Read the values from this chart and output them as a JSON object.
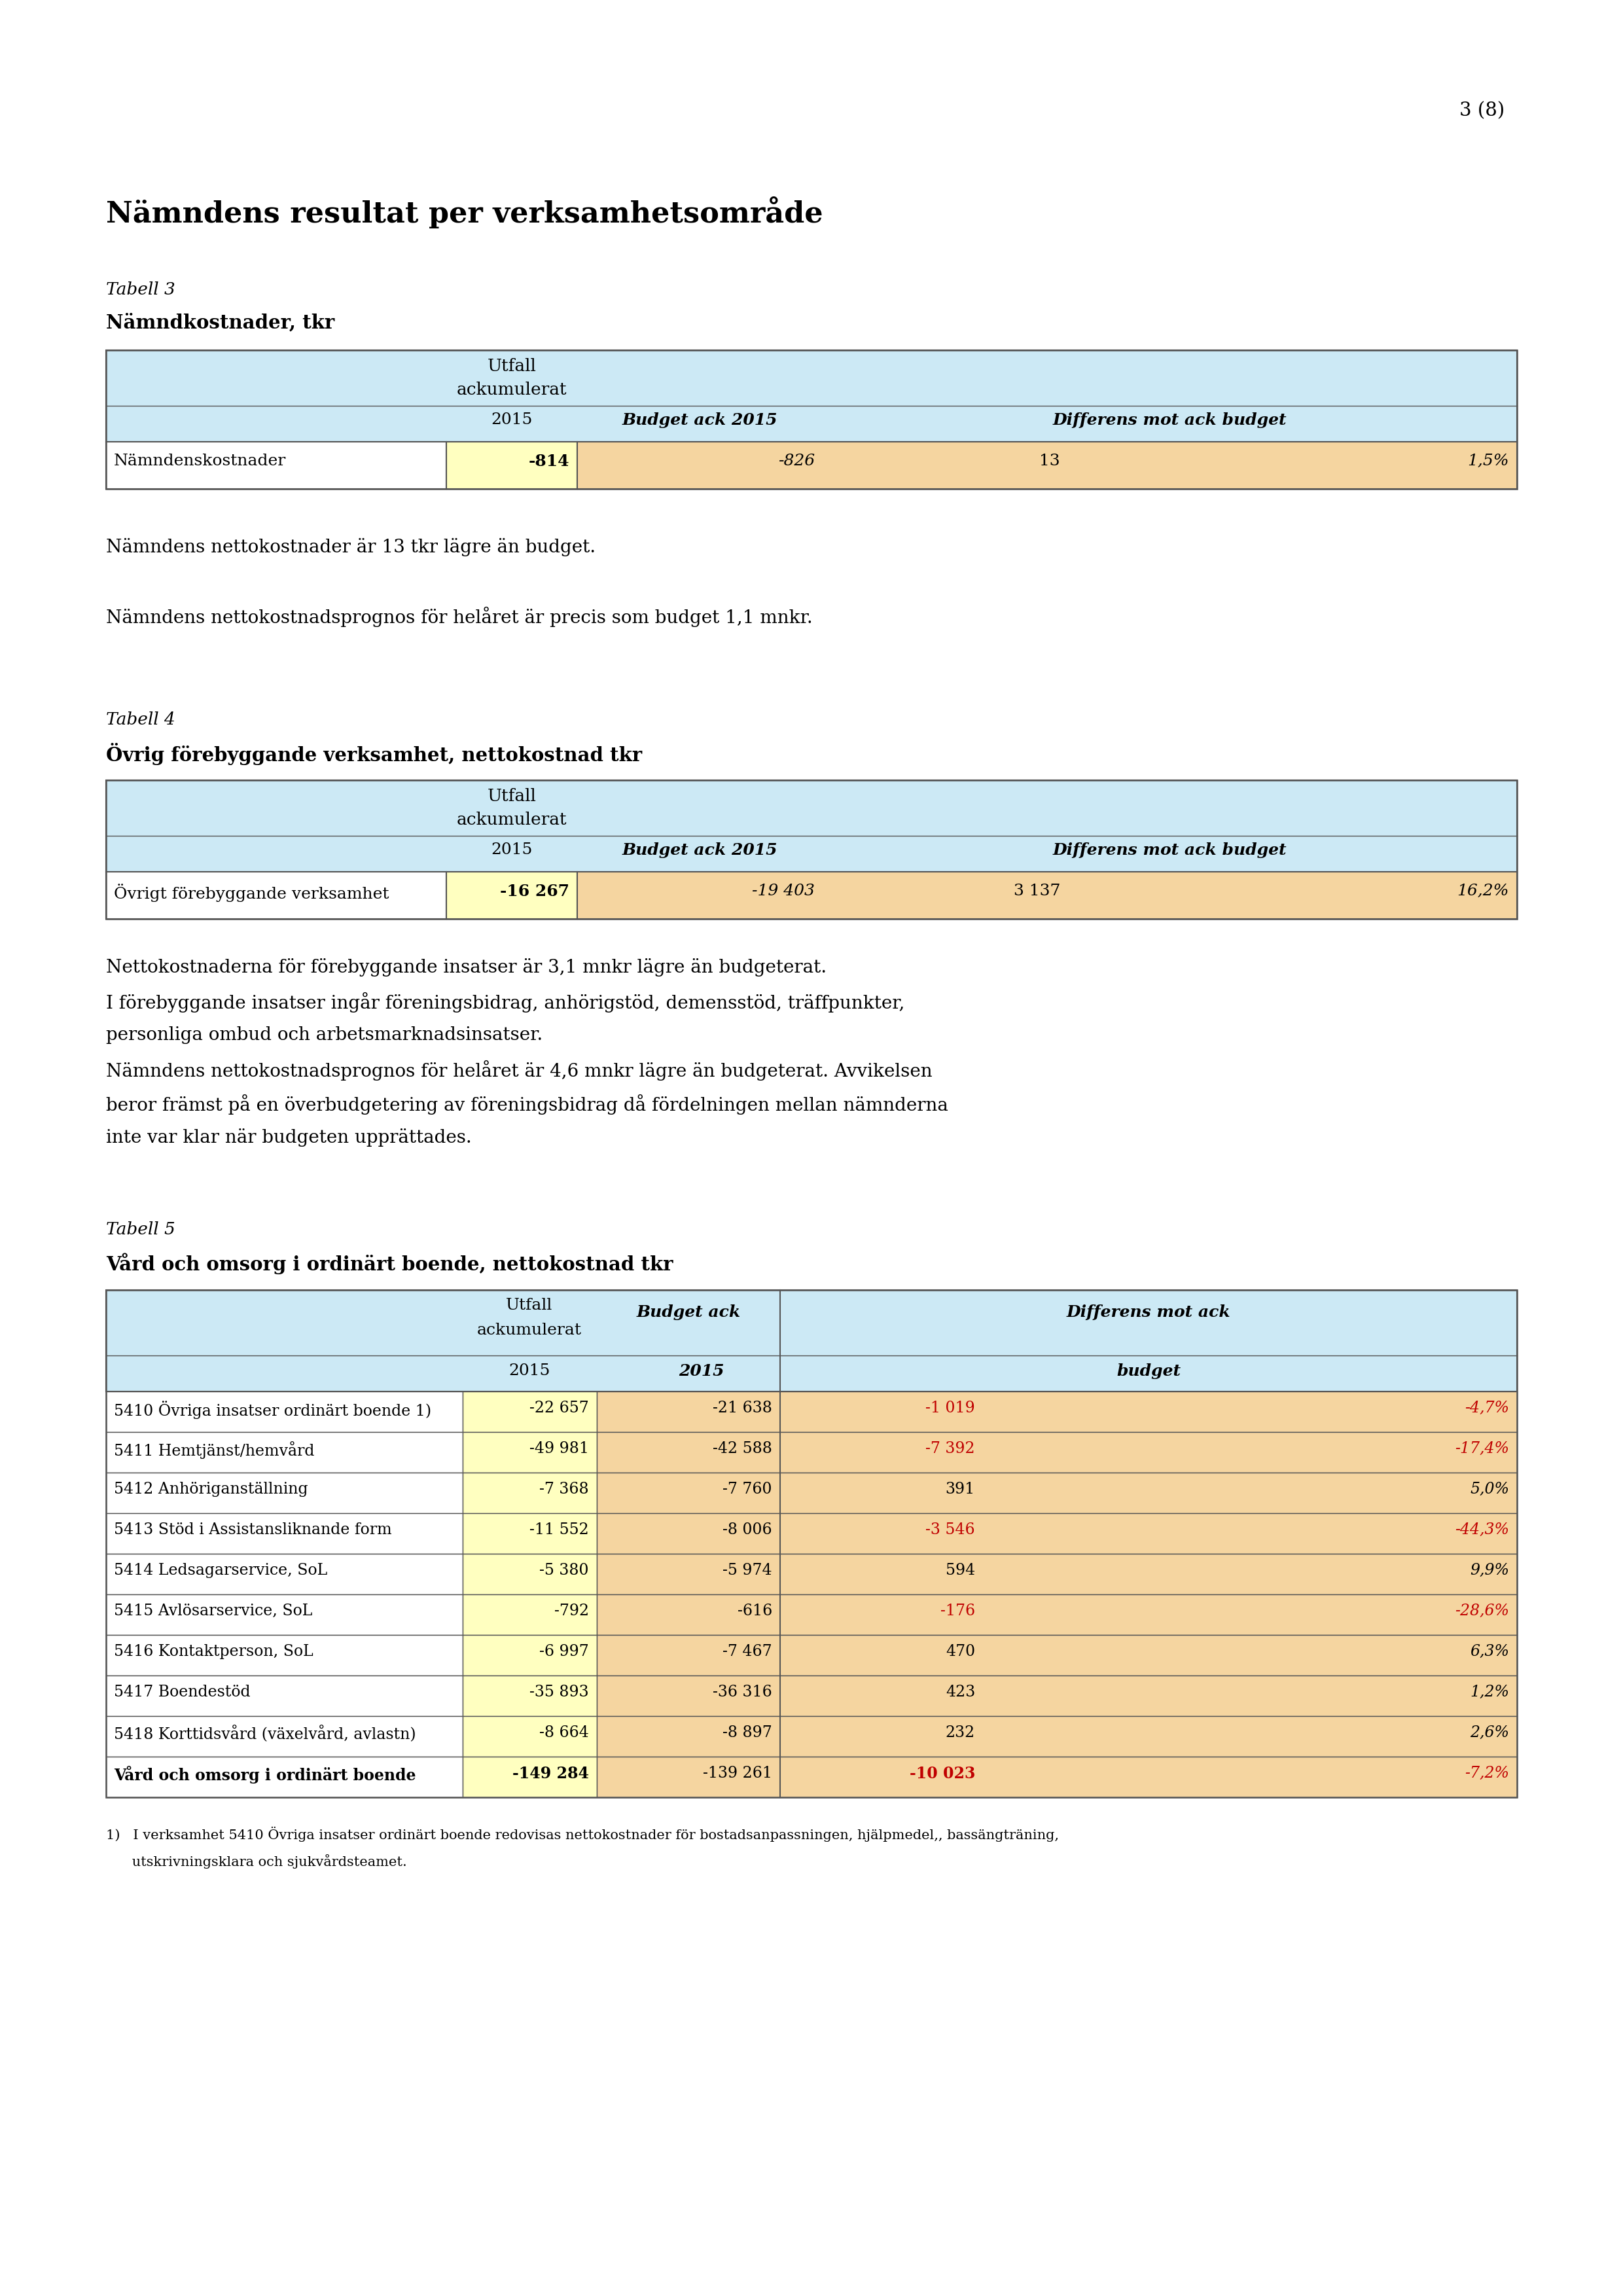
{
  "page_number": "3 (8)",
  "main_heading": "Nämndens resultat per verksamhetsområde",
  "table3_label": "Tabell 3",
  "table3_title": "Nämndkostnader, tkr",
  "table3_row1_label": "Nämndenskostnader",
  "table3_row1_utfall": "-814",
  "table3_row1_budget": "-826",
  "table3_row1_diff": "13",
  "table3_row1_pct": "1,5%",
  "para1": "Nämndens nettokostnader är 13 tkr lägre än budget.",
  "para2": "Nämndens nettokostnadsprognos för helåret är precis som budget 1,1 mnkr.",
  "table4_label": "Tabell 4",
  "table4_title": "Övrig förebyggande verksamhet, nettokostnad tkr",
  "table4_row1_label": "Övrigt förebyggande verksamhet",
  "table4_row1_utfall": "-16 267",
  "table4_row1_budget": "-19 403",
  "table4_row1_diff": "3 137",
  "table4_row1_pct": "16,2%",
  "para3_lines": [
    "Nettokostnaderna för förebyggande insatser är 3,1 mnkr lägre än budgeterat.",
    "I förebyggande insatser ingår föreningsbidrag, anhörigstöd, demensstöd, träffpunkter,",
    "personliga ombud och arbetsmarknadsinsatser.",
    "Nämndens nettokostnadsprognos för helåret är 4,6 mnkr lägre än budgeterat. Avvikelsen",
    "beror främst på en överbudgetering av föreningsbidrag då fördelningen mellan nämnderna",
    "inte var klar när budgeten upprättades."
  ],
  "table5_label": "Tabell 5",
  "table5_title": "Vård och omsorg i ordinärt boende, nettokostnad tkr",
  "table5_rows": [
    {
      "label": "5410 Övriga insatser ordinärt boende 1)",
      "utfall": "-22 657",
      "budget": "-21 638",
      "diff": "-1 019",
      "pct": "-4,7%",
      "diff_neg": true,
      "bold": false
    },
    {
      "label": "5411 Hemtjänst/hemvård",
      "utfall": "-49 981",
      "budget": "-42 588",
      "diff": "-7 392",
      "pct": "-17,4%",
      "diff_neg": true,
      "bold": false
    },
    {
      "label": "5412 Anhöriganställning",
      "utfall": "-7 368",
      "budget": "-7 760",
      "diff": "391",
      "pct": "5,0%",
      "diff_neg": false,
      "bold": false
    },
    {
      "label": "5413 Stöd i Assistansliknande form",
      "utfall": "-11 552",
      "budget": "-8 006",
      "diff": "-3 546",
      "pct": "-44,3%",
      "diff_neg": true,
      "bold": false
    },
    {
      "label": "5414 Ledsagarservice, SoL",
      "utfall": "-5 380",
      "budget": "-5 974",
      "diff": "594",
      "pct": "9,9%",
      "diff_neg": false,
      "bold": false
    },
    {
      "label": "5415 Avlösarservice, SoL",
      "utfall": "-792",
      "budget": "-616",
      "diff": "-176",
      "pct": "-28,6%",
      "diff_neg": true,
      "bold": false
    },
    {
      "label": "5416 Kontaktperson, SoL",
      "utfall": "-6 997",
      "budget": "-7 467",
      "diff": "470",
      "pct": "6,3%",
      "diff_neg": false,
      "bold": false
    },
    {
      "label": "5417 Boendestöd",
      "utfall": "-35 893",
      "budget": "-36 316",
      "diff": "423",
      "pct": "1,2%",
      "diff_neg": false,
      "bold": false
    },
    {
      "label": "5418 Korttidsvård (växelvård, avlastn)",
      "utfall": "-8 664",
      "budget": "-8 897",
      "diff": "232",
      "pct": "2,6%",
      "diff_neg": false,
      "bold": false
    },
    {
      "label": "Vård och omsorg i ordinärt boende",
      "utfall": "-149 284",
      "budget": "-139 261",
      "diff": "-10 023",
      "pct": "-7,2%",
      "diff_neg": true,
      "bold": true
    }
  ],
  "footnote_line1": "1)   I verksamhet 5410 Övriga insatser ordinärt boende redovisas nettokostnader för bostadsanpassningen, hjälpmedel,, bassängträning,",
  "footnote_line2": "      utskrivningsklara och sjukvårdsteamet.",
  "color_light_blue": "#cce9f5",
  "color_light_yellow": "#ffffc0",
  "color_light_orange": "#f5d5a0",
  "color_white": "#ffffff",
  "color_border": "#555555",
  "color_red": "#c00000",
  "color_black": "#000000"
}
